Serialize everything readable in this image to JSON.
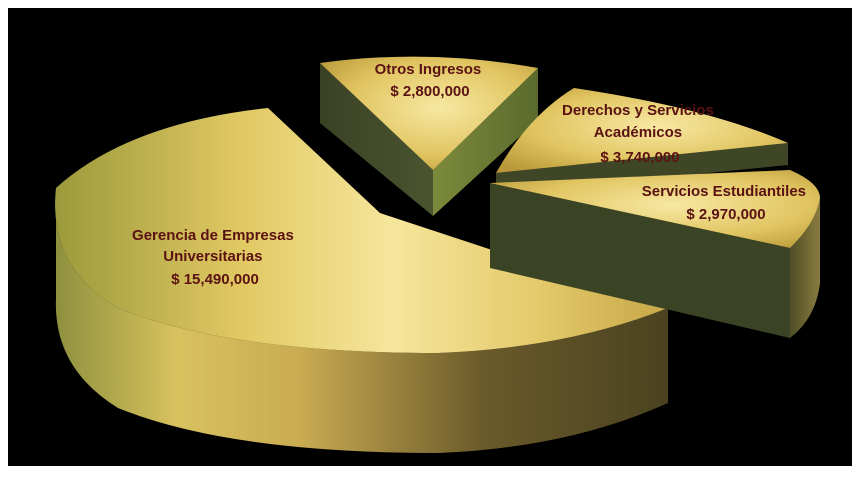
{
  "chart_data": {
    "type": "pie",
    "style": "3d-exploded",
    "title": "",
    "legend": "none",
    "colors": {
      "top_light": "#f6e69c",
      "top_mid": "#dcc25c",
      "top_dark": "#b59431",
      "side_dark": "#3c4426",
      "side_mid": "#5c6434",
      "side_light": "#8a8a44",
      "label": "#5a1212"
    },
    "slices": [
      {
        "id": "gerencia",
        "label_lines": [
          "Gerencia de Empresas",
          "Universitarias"
        ],
        "value_label": "$ 15,490,000",
        "value": 15490000
      },
      {
        "id": "otros",
        "label_lines": [
          "Otros Ingresos"
        ],
        "value_label": "$  2,800,000",
        "value": 2800000
      },
      {
        "id": "derechos",
        "label_lines": [
          "Derechos y Servicios",
          "Académicos"
        ],
        "value_label": "$ 3,740,000",
        "value": 3740000
      },
      {
        "id": "estudiantiles",
        "label_lines": [
          "Servicios Estudiantiles"
        ],
        "value_label": "$ 2,970,000",
        "value": 2970000
      }
    ]
  }
}
